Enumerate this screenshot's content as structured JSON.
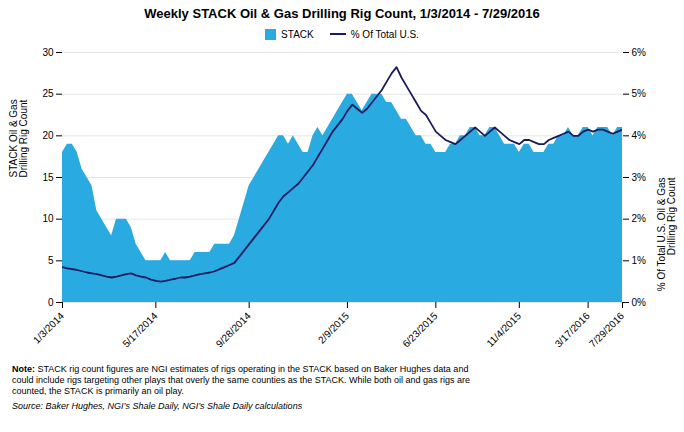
{
  "chart_data": {
    "type": "area",
    "title": "Weekly STACK Oil & Gas Drilling Rig Count, 1/3/2014 - 7/29/2016",
    "ylabel": "STACK Oil & Gas\nDrilling Rig Count",
    "y2label": "% Of Total U.S. Oil & Gas\nDrilling Rig Count",
    "categories": [
      "1/3/2014",
      null,
      null,
      null,
      null,
      null,
      null,
      null,
      null,
      null,
      null,
      null,
      null,
      null,
      null,
      null,
      null,
      null,
      null,
      "5/17/2014",
      null,
      null,
      null,
      null,
      null,
      null,
      null,
      null,
      null,
      null,
      null,
      null,
      null,
      null,
      null,
      null,
      null,
      null,
      "9/28/2014",
      null,
      null,
      null,
      null,
      null,
      null,
      null,
      null,
      null,
      null,
      null,
      null,
      null,
      null,
      null,
      null,
      null,
      null,
      null,
      "2/9/2015",
      null,
      null,
      null,
      null,
      null,
      null,
      null,
      null,
      null,
      null,
      null,
      null,
      null,
      null,
      null,
      null,
      null,
      "6/23/2015",
      null,
      null,
      null,
      null,
      null,
      null,
      null,
      null,
      null,
      null,
      null,
      null,
      null,
      null,
      null,
      null,
      "11/4/2015",
      null,
      null,
      null,
      null,
      null,
      null,
      null,
      null,
      null,
      null,
      null,
      null,
      null,
      "3/17/2016",
      null,
      null,
      null,
      null,
      null,
      null,
      "7/29/2016"
    ],
    "series": [
      {
        "name": "STACK",
        "type": "area",
        "color": "#29ABE2",
        "values": [
          18,
          19,
          19,
          18,
          16,
          15,
          14,
          11,
          10,
          9,
          8,
          10,
          10,
          10,
          9,
          7,
          6,
          5,
          5,
          5,
          5,
          6,
          5,
          5,
          5,
          5,
          5,
          6,
          6,
          6,
          6,
          7,
          7,
          7,
          7,
          8,
          10,
          12,
          14,
          15,
          16,
          17,
          18,
          19,
          20,
          20,
          19,
          20,
          19,
          18,
          18,
          20,
          21,
          20,
          21,
          22,
          23,
          24,
          25,
          25,
          24,
          23,
          24,
          25,
          25,
          25,
          24,
          24,
          23,
          22,
          22,
          21,
          20,
          20,
          19,
          19,
          18,
          18,
          18,
          19,
          19,
          20,
          20,
          21,
          21,
          20,
          20,
          21,
          21,
          20,
          19,
          19,
          19,
          18,
          19,
          19,
          18,
          18,
          18,
          19,
          19,
          20,
          20,
          21,
          20,
          20,
          21,
          21,
          20,
          21,
          21,
          21,
          20,
          21,
          21
        ]
      },
      {
        "name": "% Of Total U.S.",
        "type": "line",
        "color": "#1A1A5E",
        "axis": "y2",
        "values": [
          0.85,
          0.82,
          0.8,
          0.78,
          0.75,
          0.72,
          0.7,
          0.68,
          0.65,
          0.62,
          0.6,
          0.62,
          0.65,
          0.68,
          0.7,
          0.65,
          0.62,
          0.6,
          0.55,
          0.52,
          0.5,
          0.52,
          0.55,
          0.57,
          0.6,
          0.6,
          0.62,
          0.65,
          0.68,
          0.7,
          0.72,
          0.75,
          0.8,
          0.85,
          0.9,
          0.95,
          1.1,
          1.25,
          1.4,
          1.55,
          1.7,
          1.85,
          2.0,
          2.2,
          2.4,
          2.55,
          2.65,
          2.75,
          2.85,
          3.0,
          3.15,
          3.3,
          3.5,
          3.7,
          3.9,
          4.1,
          4.25,
          4.4,
          4.6,
          4.75,
          4.65,
          4.55,
          4.65,
          4.8,
          4.95,
          5.1,
          5.3,
          5.5,
          5.65,
          5.4,
          5.2,
          5.0,
          4.8,
          4.6,
          4.5,
          4.3,
          4.1,
          4.0,
          3.9,
          3.85,
          3.8,
          3.9,
          4.0,
          4.1,
          4.2,
          4.1,
          4.0,
          4.1,
          4.2,
          4.1,
          4.0,
          3.9,
          3.85,
          3.8,
          3.9,
          3.9,
          3.85,
          3.8,
          3.8,
          3.9,
          3.95,
          4.0,
          4.05,
          4.1,
          4.0,
          4.0,
          4.1,
          4.15,
          4.1,
          4.15,
          4.15,
          4.1,
          4.05,
          4.1,
          4.15
        ]
      }
    ],
    "ylim": [
      0,
      30
    ],
    "yticks": [
      0,
      5,
      10,
      15,
      20,
      25,
      30
    ],
    "y2lim": [
      0,
      6
    ],
    "y2ticks": [
      {
        "value": 0,
        "label": "0%"
      },
      {
        "value": 1,
        "label": "1%"
      },
      {
        "value": 2,
        "label": "2%"
      },
      {
        "value": 3,
        "label": "3%"
      },
      {
        "value": 4,
        "label": "4%"
      },
      {
        "value": 5,
        "label": "5%"
      },
      {
        "value": 6,
        "label": "6%"
      }
    ],
    "grid": true,
    "legend": "top",
    "annotations": [
      "Note:",
      "STACK rig count figures are NGI estimates of rigs operating in the STACK based on Baker Hughes data and\ncould include rigs targeting other plays that overly the same counties as the STACK. While both oil and gas rigs are\ncounted, the STACK is primarily an oil play.",
      "Source: Baker Hughes, NGI’s Shale Daily, NGI’s Shale Daily calculations"
    ]
  }
}
